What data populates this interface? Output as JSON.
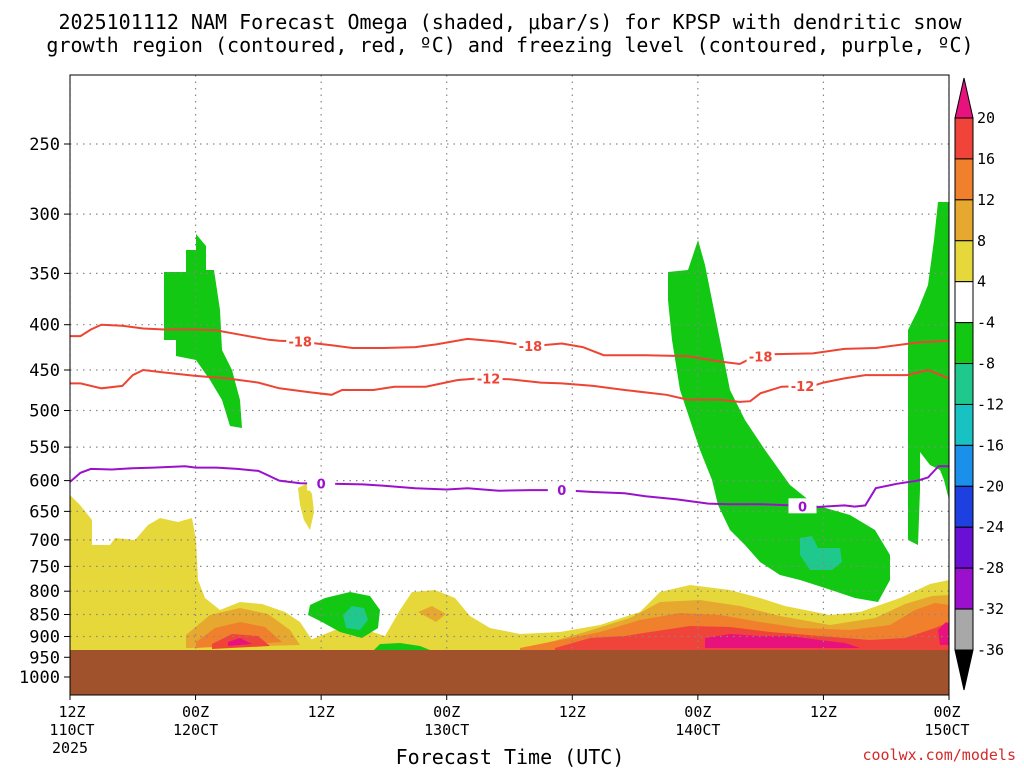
{
  "title_line1": "2025101112 NAM Forecast Omega (shaded, μbar/s) for KPSP with dendritic snow",
  "title_line2": "growth region (contoured, red, ºC) and freezing level (contoured, purple, ºC)",
  "credit": "coolwx.com/models",
  "colors": {
    "dgz": "#ee4433",
    "freezing": "#9a11cc",
    "ground": "#a0522d",
    "grid": "#888888"
  },
  "chart_data": {
    "type": "time-height cross section",
    "xlabel": "Forecast Time (UTC)",
    "x_range_hours": [
      0,
      84
    ],
    "x_ticks": [
      {
        "hour": 0,
        "line1": "12Z",
        "line2": "110CT",
        "line3": "2025"
      },
      {
        "hour": 12,
        "line1": "00Z",
        "line2": "120CT"
      },
      {
        "hour": 24,
        "line1": "12Z"
      },
      {
        "hour": 36,
        "line1": "00Z",
        "line2": "130CT"
      },
      {
        "hour": 48,
        "line1": "12Z"
      },
      {
        "hour": 60,
        "line1": "00Z",
        "line2": "140CT"
      },
      {
        "hour": 72,
        "line1": "12Z"
      },
      {
        "hour": 84,
        "line1": "00Z",
        "line2": "150CT"
      }
    ],
    "y_axis": "pressure (hPa)",
    "y_range_hpa": [
      200,
      1050
    ],
    "y_ticks": [
      "250",
      "300",
      "350",
      "400",
      "450",
      "500",
      "550",
      "600",
      "650",
      "700",
      "750",
      "800",
      "850",
      "900",
      "950",
      "1000"
    ],
    "colorbar": {
      "units": "μbar/s",
      "ticks": [
        "20",
        "16",
        "12",
        "8",
        "4",
        "-4",
        "-8",
        "-12",
        "-16",
        "-20",
        "-24",
        "-28",
        "-32",
        "-36"
      ],
      "bands": [
        {
          "from": 24,
          "to": 20,
          "color": "#e8127c"
        },
        {
          "from": 20,
          "to": 16,
          "color": "#f0443a"
        },
        {
          "from": 16,
          "to": 12,
          "color": "#f0802c"
        },
        {
          "from": 12,
          "to": 8,
          "color": "#e6a82e"
        },
        {
          "from": 8,
          "to": 4,
          "color": "#e6d83a"
        },
        {
          "from": 4,
          "to": -4,
          "color": "#ffffff"
        },
        {
          "from": -4,
          "to": -8,
          "color": "#12c812"
        },
        {
          "from": -8,
          "to": -12,
          "color": "#1fc88c"
        },
        {
          "from": -12,
          "to": -16,
          "color": "#18c2c2"
        },
        {
          "from": -16,
          "to": -20,
          "color": "#1a90ea"
        },
        {
          "from": -20,
          "to": -24,
          "color": "#1e40e0"
        },
        {
          "from": -24,
          "to": -28,
          "color": "#6a10d4"
        },
        {
          "from": -28,
          "to": -32,
          "color": "#9a10cc"
        },
        {
          "from": -32,
          "to": -36,
          "color": "#a8a8a8"
        },
        {
          "from": -36,
          "to": -40,
          "color": "#000000"
        }
      ]
    },
    "contours": [
      {
        "name": "dgz-minus18",
        "value": "-18",
        "color": "#ee4433",
        "points": [
          [
            0,
            412
          ],
          [
            1,
            412
          ],
          [
            2,
            405
          ],
          [
            3,
            400
          ],
          [
            5,
            401
          ],
          [
            7,
            404
          ],
          [
            9,
            405
          ],
          [
            12,
            405
          ],
          [
            14,
            406
          ],
          [
            16,
            410
          ],
          [
            19,
            416
          ],
          [
            20,
            417
          ],
          [
            22,
            418
          ],
          [
            25,
            422
          ],
          [
            27,
            425
          ],
          [
            30,
            425
          ],
          [
            33,
            424
          ],
          [
            35,
            421
          ],
          [
            38,
            415
          ],
          [
            41,
            418
          ],
          [
            44,
            423
          ],
          [
            47,
            420
          ],
          [
            49,
            424
          ],
          [
            51,
            433
          ],
          [
            55,
            433
          ],
          [
            59,
            434
          ],
          [
            62,
            440
          ],
          [
            64,
            443
          ],
          [
            65,
            437
          ],
          [
            67,
            432
          ],
          [
            71,
            431
          ],
          [
            74,
            426
          ],
          [
            77,
            425
          ],
          [
            81,
            419
          ],
          [
            84,
            417
          ]
        ],
        "label_hours": [
          22,
          44,
          66
        ]
      },
      {
        "name": "dgz-minus12",
        "value": "-12",
        "color": "#ee4433",
        "points": [
          [
            0,
            466
          ],
          [
            1,
            466
          ],
          [
            3,
            472
          ],
          [
            5,
            469
          ],
          [
            6,
            456
          ],
          [
            7,
            450
          ],
          [
            9,
            453
          ],
          [
            12,
            457
          ],
          [
            15,
            460
          ],
          [
            18,
            465
          ],
          [
            20,
            472
          ],
          [
            23,
            477
          ],
          [
            25,
            480
          ],
          [
            26,
            474
          ],
          [
            29,
            474
          ],
          [
            31,
            470
          ],
          [
            34,
            470
          ],
          [
            37,
            462
          ],
          [
            39,
            460
          ],
          [
            42,
            461
          ],
          [
            45,
            465
          ],
          [
            47,
            466
          ],
          [
            50,
            469
          ],
          [
            53,
            474
          ],
          [
            57,
            480
          ],
          [
            59,
            486
          ],
          [
            62,
            486
          ],
          [
            64,
            489
          ],
          [
            65,
            488
          ],
          [
            66,
            478
          ],
          [
            68,
            470
          ],
          [
            71,
            469
          ],
          [
            72,
            465
          ],
          [
            74,
            460
          ],
          [
            76,
            456
          ],
          [
            80,
            456
          ],
          [
            82,
            450
          ],
          [
            84,
            460
          ]
        ],
        "label_hours": [
          40,
          70
        ]
      },
      {
        "name": "freezing-0",
        "value": "0",
        "color": "#9a11cc",
        "points": [
          [
            0,
            602
          ],
          [
            1,
            588
          ],
          [
            2,
            582
          ],
          [
            4,
            583
          ],
          [
            6,
            581
          ],
          [
            8,
            580
          ],
          [
            11,
            578
          ],
          [
            12,
            580
          ],
          [
            14,
            580
          ],
          [
            16,
            582
          ],
          [
            18,
            585
          ],
          [
            20,
            600
          ],
          [
            22,
            604
          ],
          [
            25,
            605
          ],
          [
            28,
            606
          ],
          [
            30,
            608
          ],
          [
            33,
            612
          ],
          [
            36,
            614
          ],
          [
            38,
            612
          ],
          [
            41,
            616
          ],
          [
            44,
            615
          ],
          [
            47,
            615
          ],
          [
            50,
            618
          ],
          [
            53,
            620
          ],
          [
            55,
            625
          ],
          [
            58,
            630
          ],
          [
            61,
            637
          ],
          [
            63,
            638
          ],
          [
            66,
            638
          ],
          [
            69,
            640
          ],
          [
            71,
            643
          ],
          [
            74,
            640
          ],
          [
            75,
            642
          ],
          [
            76,
            640
          ],
          [
            77,
            612
          ],
          [
            79,
            605
          ],
          [
            81,
            600
          ],
          [
            82,
            595
          ],
          [
            83,
            578
          ],
          [
            84,
            578
          ]
        ],
        "label_hours": [
          24,
          47,
          70
        ]
      }
    ],
    "omega_shading_ubar_s": [
      {
        "category": "-4 to -8",
        "region": "upper-level ascent near 03Z 12 Oct",
        "approx": "350-520 hPa"
      },
      {
        "category": "-4 to -8",
        "region": "ascent near 12-18Z 12 Oct",
        "approx": "820-900 hPa"
      },
      {
        "category": "-8 to -12",
        "region": "core near 15Z 12 Oct",
        "approx": "850-880 hPa"
      },
      {
        "category": "-4 to -8",
        "region": "deep ascent 00Z-18Z 14 Oct",
        "approx": "340-830 hPa"
      },
      {
        "category": "-8 to -12",
        "region": "core near 12Z 14 Oct",
        "approx": "710-760 hPa"
      },
      {
        "category": "-4 to -8",
        "region": "ascent at end of period 15 Oct",
        "approx": "290-640 hPa"
      },
      {
        "category": "4 to 20+",
        "region": "low-level subsidence 11-15 Oct",
        "approx": "650-950 hPa"
      }
    ],
    "ground_level_hpa": 935
  }
}
